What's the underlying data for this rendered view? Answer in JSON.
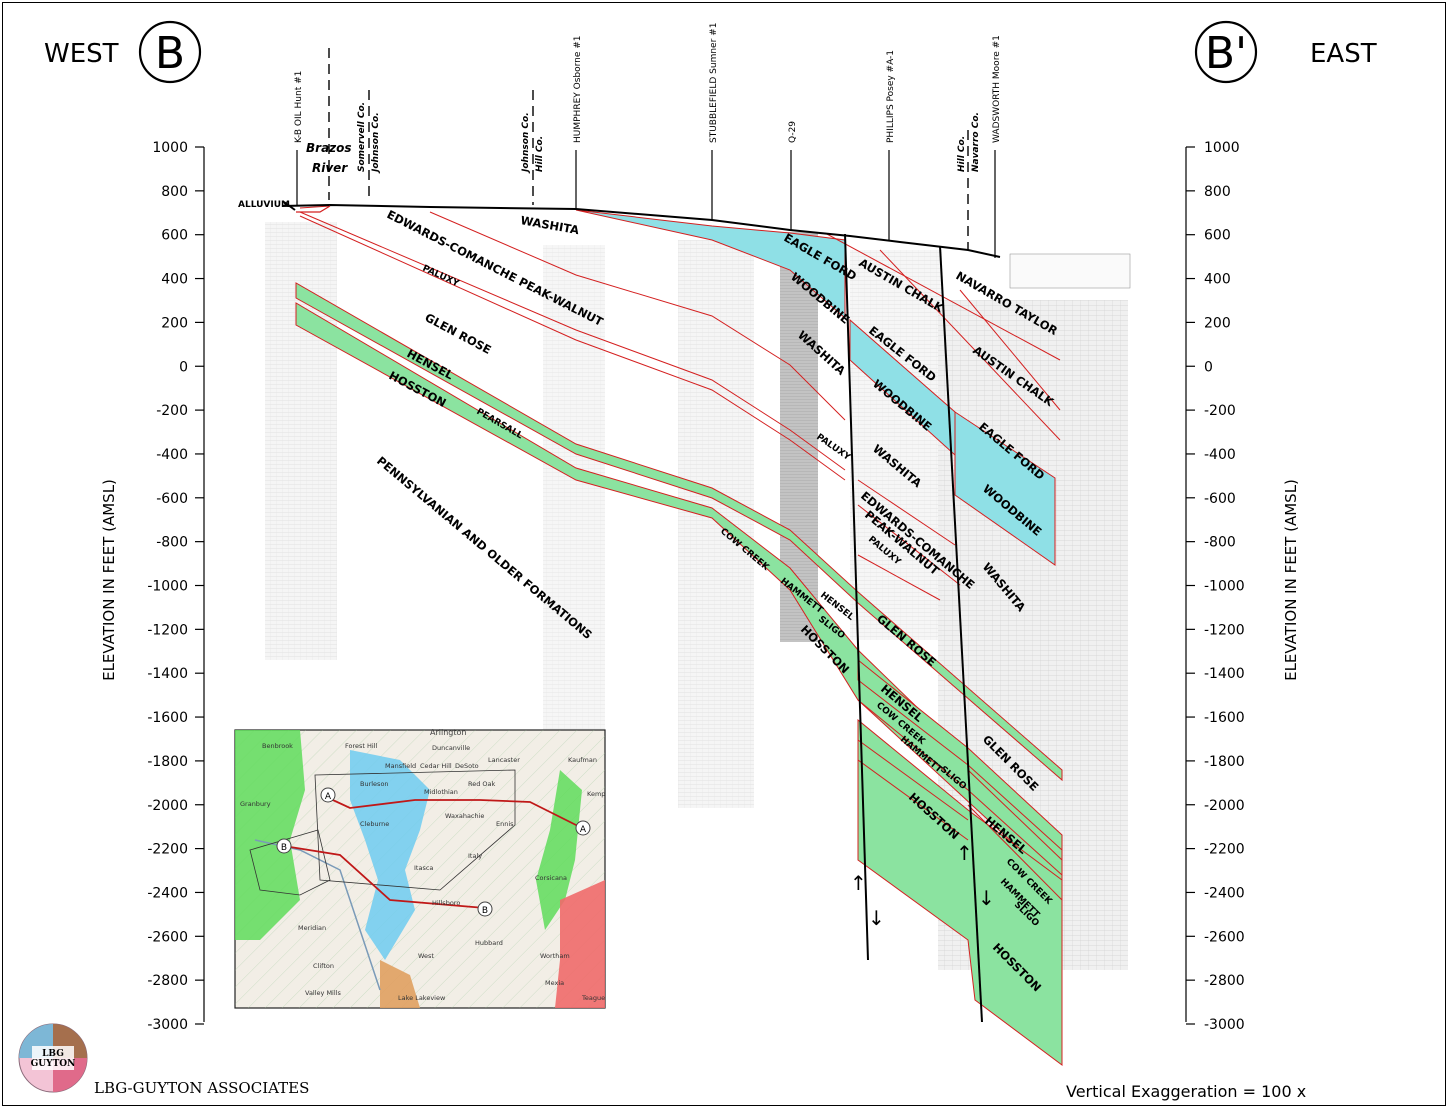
{
  "header": {
    "west": "WEST",
    "east": "EAST",
    "left_marker": "B",
    "right_marker": "B'"
  },
  "axis": {
    "left_label": "ELEVATION IN FEET (AMSL)",
    "right_label": "ELEVATION IN FEET (AMSL)",
    "ticks": [
      "1000",
      "800",
      "600",
      "400",
      "200",
      "0",
      "-200",
      "-400",
      "-600",
      "-800",
      "-1000",
      "-1200",
      "-1400",
      "-1600",
      "-1800",
      "-2000",
      "-2200",
      "-2400",
      "-2600",
      "-2800",
      "-3000"
    ]
  },
  "wells": [
    "K-B OIL Hunt #1",
    "HUMPHREY Osborne #1",
    "STUBBLEFIELD Sumner #1",
    "Q-29",
    "PHILLIPS Posey #A-1",
    "WADSWORTH Moore #1"
  ],
  "counties": {
    "somervell": "Somervell Co.",
    "johnson_1": "Johnson Co.",
    "johnson_2": "Johnson Co.",
    "hill_1": "Hill Co.",
    "hill_2": "Hill Co.",
    "navarro": "Navarro Co."
  },
  "river": {
    "line1": "Brazos",
    "line2": "River"
  },
  "formations": {
    "alluvium": "ALLUVIUM",
    "washita_1": "WASHITA",
    "edwards_1": "EDWARDS-COMANCHE PEAK-WALNUT",
    "paluxy_1": "PALUXY",
    "glen_rose_1": "GLEN ROSE",
    "hensel_1": "HENSEL",
    "hosston_1": "HOSSTON",
    "pearsall_1": "PEARSALL",
    "penn": "PENNSYLVANIAN AND OLDER FORMATIONS",
    "eagle_ford_1": "EAGLE FORD",
    "woodbine_1": "WOODBINE",
    "washita_2": "WASHITA",
    "paluxy_2": "PALUXY",
    "cow_creek_1": "COW CREEK",
    "hammett_1": "HAMMETT",
    "hensel_2": "HENSEL",
    "sligo_1": "SLIGO",
    "hosston_2": "HOSSTON",
    "austin_chalk_1": "AUSTIN CHALK",
    "eagle_ford_2": "EAGLE FORD",
    "woodbine_2": "WOODBINE",
    "washita_3": "WASHITA",
    "edwards_2a": "EDWARDS-COMANCHE",
    "edwards_2b": "PEAK-WALNUT",
    "paluxy_3": "PALUXY",
    "glen_rose_2": "GLEN ROSE",
    "hensel_3": "HENSEL",
    "cow_creek_2": "COW CREEK",
    "hammett_2": "HAMMETT",
    "sligo_2": "SLIGO",
    "hosston_3": "HOSSTON",
    "navarro_taylor": "NAVARRO TAYLOR",
    "austin_chalk_2": "AUSTIN CHALK",
    "eagle_ford_3": "EAGLE FORD",
    "woodbine_3": "WOODBINE",
    "washita_4": "WASHITA",
    "glen_rose_3": "GLEN ROSE",
    "hensel_4": "HENSEL",
    "cow_creek_3": "COW CREEK",
    "hammett_3": "HAMMETT",
    "sligo_3": "SLIGO",
    "hosston_4": "HOSSTON"
  },
  "map": {
    "towns": [
      "Arlington",
      "Benbrook",
      "Forest Hill",
      "Duncanville",
      "Mansfield",
      "Cedar Hill",
      "DeSoto",
      "Lancaster",
      "Burleson",
      "Midlothian",
      "Red Oak",
      "Kaufman",
      "Granbury",
      "Cleburne",
      "Waxahachie",
      "Ennis",
      "Itasca",
      "Italy",
      "Corsicana",
      "Hillsboro",
      "Meridian",
      "Hubbard",
      "Clifton",
      "West",
      "Wortham",
      "Valley Mills",
      "Lake Lakeview",
      "Mexia",
      "Teague",
      "Kemp"
    ],
    "markers": {
      "a_left": "A",
      "a_right": "A",
      "b_left": "B",
      "b_right": "B"
    }
  },
  "footer": {
    "logo_text": "LBG\nGUYTON",
    "company": "LBG-GUYTON ASSOCIATES",
    "exaggeration": "Vertical Exaggeration = 100 x"
  },
  "colors": {
    "green": "#8be3a0",
    "cyan": "#8fe0e6",
    "red_line": "#d42020",
    "map_green": "#5fdc5a",
    "map_blue": "#6ecbf0",
    "map_red": "#f06a6a"
  }
}
